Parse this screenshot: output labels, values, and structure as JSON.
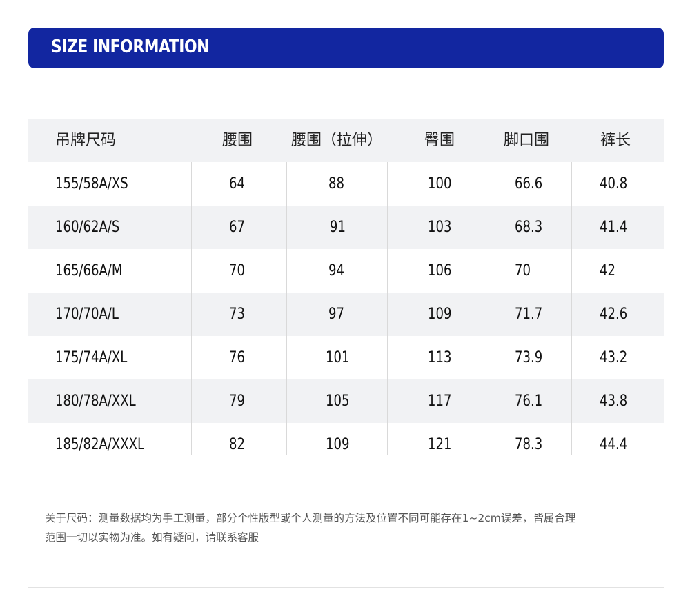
{
  "banner": {
    "title": "SIZE INFORMATION"
  },
  "table": {
    "headers": [
      "吊牌尺码",
      "腰围",
      "腰围（拉伸）",
      "臀围",
      "脚口围",
      "裤长"
    ],
    "rows": [
      [
        "155/58A/XS",
        "64",
        "88",
        "100",
        "66.6",
        "40.8"
      ],
      [
        "160/62A/S",
        "67",
        "91",
        "103",
        "68.3",
        "41.4"
      ],
      [
        "165/66A/M",
        "70",
        "94",
        "106",
        "70",
        "42"
      ],
      [
        "170/70A/L",
        "73",
        "97",
        "109",
        "71.7",
        "42.6"
      ],
      [
        "175/74A/XL",
        "76",
        "101",
        "113",
        "73.9",
        "43.2"
      ],
      [
        "180/78A/XXL",
        "79",
        "105",
        "117",
        "76.1",
        "43.8"
      ],
      [
        "185/82A/XXXL",
        "82",
        "109",
        "121",
        "78.3",
        "44.4"
      ]
    ]
  },
  "note": {
    "line1": "关于尺码：测量数据均为手工测量，部分个性版型或个人测量的方法及位置不同可能存在1~2cm误差，皆属合理",
    "line2": "范围一切以实物为准。如有疑问，请联系客服"
  },
  "colors": {
    "banner": "#1226a0",
    "row_shade": "#f1f2f4",
    "divider": "#d9d9d9"
  }
}
